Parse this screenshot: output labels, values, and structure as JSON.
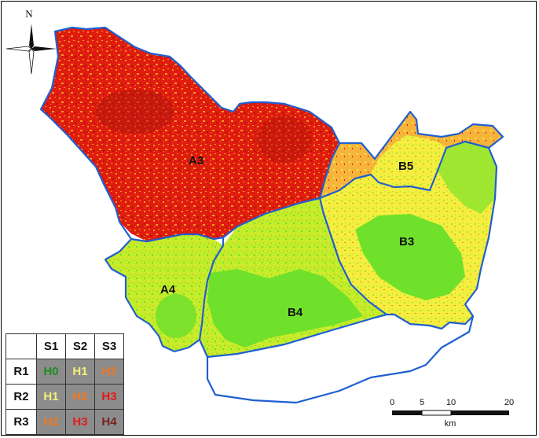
{
  "north_label": "N",
  "regions": [
    {
      "id": "A3",
      "label": "A3"
    },
    {
      "id": "A4",
      "label": "A4"
    },
    {
      "id": "B3",
      "label": "B3"
    },
    {
      "id": "B4",
      "label": "B4"
    },
    {
      "id": "B5",
      "label": "B5"
    }
  ],
  "legend": {
    "columns": [
      "S1",
      "S2",
      "S3"
    ],
    "rows": [
      {
        "label": "R1",
        "cells": [
          "H0",
          "H1",
          "H2"
        ]
      },
      {
        "label": "R2",
        "cells": [
          "H1",
          "H2",
          "H3"
        ]
      },
      {
        "label": "R3",
        "cells": [
          "H2",
          "H3",
          "H4"
        ]
      }
    ]
  },
  "scale_bar": {
    "ticks": [
      "0",
      "5",
      "10",
      "20"
    ],
    "unit": "km"
  },
  "colors": {
    "boundary": "#1f5fd1",
    "H0": "#1f8c1f",
    "H1": "#f5f07a",
    "H2": "#f07820",
    "H3": "#e31a1a",
    "H4": "#7a1f1f"
  }
}
